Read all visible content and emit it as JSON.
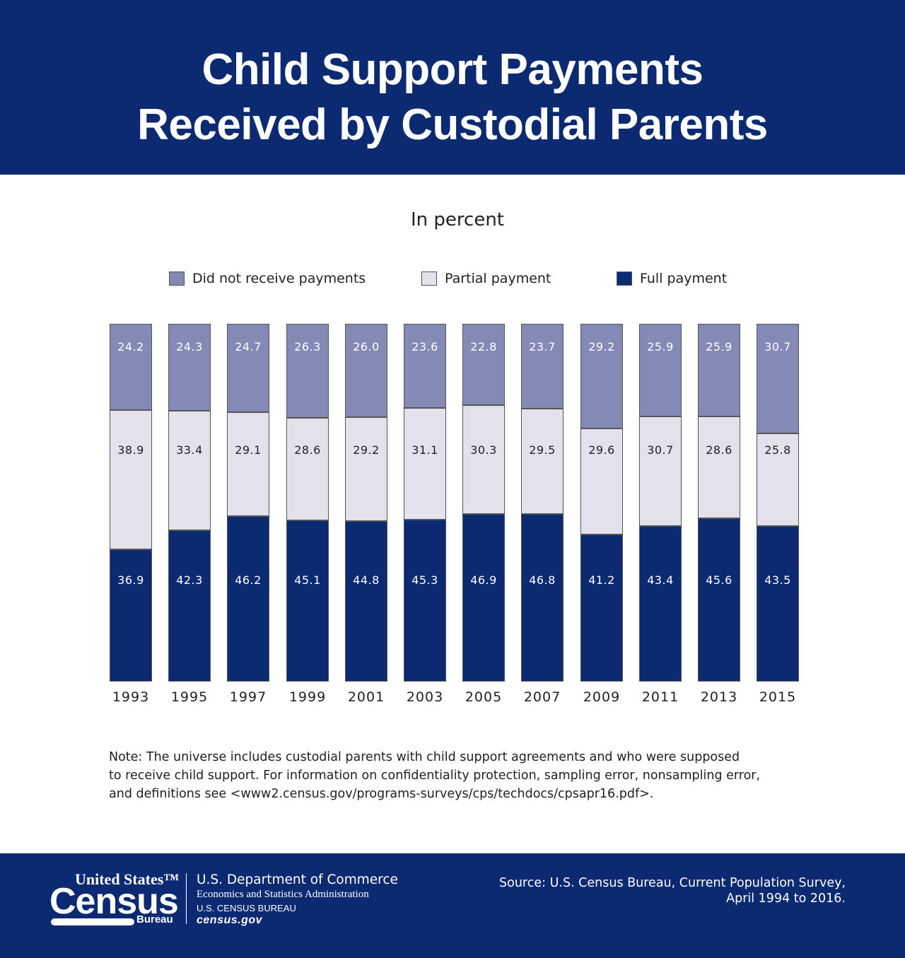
{
  "header": {
    "title_line1": "Child Support Payments",
    "title_line2": "Received by Custodial Parents"
  },
  "subtitle": "In percent",
  "legend": [
    {
      "label": "Did not receive payments",
      "color": "#838ab6"
    },
    {
      "label": "Partial payment",
      "color": "#e3e2ec"
    },
    {
      "label": "Full payment",
      "color": "#0c2a72"
    }
  ],
  "colors": {
    "none": "#838ab6",
    "partial": "#e3e2ec",
    "full": "#0c2a72",
    "brand": "#0c2a72"
  },
  "chart_data": {
    "type": "bar",
    "stacked": true,
    "title": "Child Support Payments Received by Custodial Parents",
    "subtitle": "In percent",
    "xlabel": "",
    "ylabel": "Percent",
    "ylim": [
      0,
      100
    ],
    "grid": false,
    "legend_position": "top",
    "categories": [
      "1993",
      "1995",
      "1997",
      "1999",
      "2001",
      "2003",
      "2005",
      "2007",
      "2009",
      "2011",
      "2013",
      "2015"
    ],
    "series": [
      {
        "name": "Full payment",
        "values": [
          36.9,
          42.3,
          46.2,
          45.1,
          44.8,
          45.3,
          46.9,
          46.8,
          41.2,
          43.4,
          45.6,
          43.5
        ]
      },
      {
        "name": "Partial payment",
        "values": [
          38.9,
          33.4,
          29.1,
          28.6,
          29.2,
          31.1,
          30.3,
          29.5,
          29.6,
          30.7,
          28.6,
          25.8
        ]
      },
      {
        "name": "Did not receive payments",
        "values": [
          24.2,
          24.3,
          24.7,
          26.3,
          26.0,
          23.6,
          22.8,
          23.7,
          29.2,
          25.9,
          25.9,
          30.7
        ]
      }
    ]
  },
  "bars": [
    {
      "year": "1993",
      "none": "24.2",
      "partial": "38.9",
      "full": "36.9"
    },
    {
      "year": "1995",
      "none": "24.3",
      "partial": "33.4",
      "full": "42.3"
    },
    {
      "year": "1997",
      "none": "24.7",
      "partial": "29.1",
      "full": "46.2"
    },
    {
      "year": "1999",
      "none": "26.3",
      "partial": "28.6",
      "full": "45.1"
    },
    {
      "year": "2001",
      "none": "26.0",
      "partial": "29.2",
      "full": "44.8"
    },
    {
      "year": "2003",
      "none": "23.6",
      "partial": "31.1",
      "full": "45.3"
    },
    {
      "year": "2005",
      "none": "22.8",
      "partial": "30.3",
      "full": "46.9"
    },
    {
      "year": "2007",
      "none": "23.7",
      "partial": "29.5",
      "full": "46.8"
    },
    {
      "year": "2009",
      "none": "29.2",
      "partial": "29.6",
      "full": "41.2"
    },
    {
      "year": "2011",
      "none": "25.9",
      "partial": "30.7",
      "full": "43.4"
    },
    {
      "year": "2013",
      "none": "25.9",
      "partial": "28.6",
      "full": "45.6"
    },
    {
      "year": "2015",
      "none": "30.7",
      "partial": "25.8",
      "full": "43.5"
    }
  ],
  "note": {
    "line1": "Note: The universe includes custodial parents with child support agreements and who were supposed",
    "line2": "to receive child support. For information on confidentiality protection, sampling error, nonsampling error,",
    "line3": "and definitions see <www2.census.gov/programs-surveys/cps/techdocs/cpsapr16.pdf>."
  },
  "footer": {
    "logo_united_states": "United States™",
    "logo_census": "Census",
    "logo_bureau": "Bureau",
    "dept_line1": "U.S. Department of Commerce",
    "dept_line2": "Economics and Statistics Administration",
    "dept_line3": "U.S. CENSUS BUREAU",
    "dept_line4": "census.gov",
    "source_line1": "Source: U.S. Census Bureau, Current Population Survey,",
    "source_line2": "April 1994 to 2016."
  }
}
